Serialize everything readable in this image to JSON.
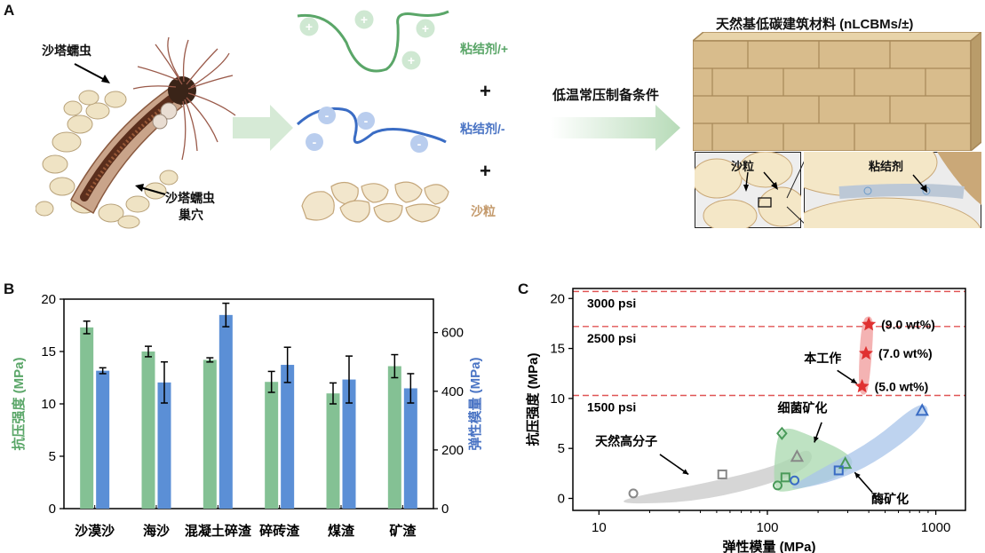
{
  "panelA": {
    "letter": "A",
    "worm_label": "沙塔蠕虫",
    "nest_label_1": "沙塔蠕虫",
    "nest_label_2": "巢穴",
    "binder_pos": "粘结剂/+",
    "binder_neg": "粘结剂/-",
    "sand": "沙粒",
    "plus1": "+",
    "plus2": "+",
    "condition": "低温常压制备条件",
    "material_title": "天然基低碳建筑材料 (nLCBMs/±)",
    "inset_sand": "沙粒",
    "inset_binder": "粘结剂",
    "colors": {
      "green": "#5aa668",
      "blue": "#4a74c4",
      "brown": "#c49a6c",
      "arrow": "#cfe6cf"
    }
  },
  "panelB": {
    "letter": "B",
    "chart_data": {
      "type": "bar",
      "categories": [
        "沙漠沙",
        "海沙",
        "混凝土碎渣",
        "碎砖渣",
        "煤渣",
        "矿渣"
      ],
      "series": [
        {
          "name": "抗压强度 (MPa)",
          "axis": "left",
          "color": "#84c194",
          "values": [
            17.3,
            15.0,
            14.2,
            12.1,
            11.0,
            13.6
          ],
          "errors": [
            0.6,
            0.5,
            0.2,
            1.0,
            1.0,
            1.1
          ]
        },
        {
          "name": "弹性模量 (MPa)",
          "axis": "right",
          "color": "#5b8fd6",
          "values": [
            470,
            430,
            660,
            490,
            440,
            410
          ],
          "errors": [
            10,
            70,
            40,
            60,
            80,
            50
          ]
        }
      ],
      "ylabel_left": "抗压强度 (MPa)",
      "ylabel_right": "弹性模量 (MPa)",
      "ylim_left": [
        0,
        20
      ],
      "ylim_right": [
        0,
        714
      ],
      "yticks_left": [
        "0",
        "5",
        "10",
        "15",
        "20"
      ],
      "yticks_right": [
        "0",
        "200",
        "400",
        "600"
      ],
      "yticks_left_vals": [
        0,
        5,
        10,
        15,
        20
      ],
      "yticks_right_vals": [
        0,
        200,
        400,
        600
      ]
    }
  },
  "panelC": {
    "letter": "C",
    "chart_data": {
      "type": "scatter",
      "x_scale": "log",
      "xlim": [
        7,
        1500
      ],
      "ylim": [
        -1.2,
        21
      ],
      "xlabel": "弹性模量 (MPa)",
      "ylabel": "抗压强度 (MPa)",
      "xticks": [
        "10",
        "100",
        "1000"
      ],
      "xticks_vals": [
        10,
        100,
        1000
      ],
      "yticks": [
        "0",
        "5",
        "10",
        "15",
        "20"
      ],
      "yticks_vals": [
        0,
        5,
        10,
        15,
        20
      ],
      "hlines": [
        {
          "y": 20.7,
          "label": "3000 psi"
        },
        {
          "y": 17.2,
          "label": "2500 psi"
        },
        {
          "y": 10.3,
          "label": "1500 psi"
        }
      ],
      "regions": [
        {
          "name": "天然高分子",
          "color": "#c8c8c8"
        },
        {
          "name": "细菌矿化",
          "color": "#a8d8ae"
        },
        {
          "name": "酶矿化",
          "color": "#a8c4ea"
        },
        {
          "name": "本工作",
          "color": "#f09a9a"
        }
      ],
      "points": [
        {
          "group": "天然高分子",
          "marker": "circle",
          "x": 16,
          "y": 0.5,
          "color": "#888888"
        },
        {
          "group": "天然高分子",
          "marker": "square",
          "x": 54,
          "y": 2.4,
          "color": "#888888"
        },
        {
          "group": "天然高分子",
          "marker": "triangle",
          "x": 150,
          "y": 4.2,
          "color": "#888888"
        },
        {
          "group": "细菌矿化",
          "marker": "diamond",
          "x": 122,
          "y": 6.5,
          "color": "#4a9a5a"
        },
        {
          "group": "细菌矿化",
          "marker": "circle",
          "x": 115,
          "y": 1.3,
          "color": "#4a9a5a"
        },
        {
          "group": "细菌矿化",
          "marker": "square",
          "x": 128,
          "y": 2.1,
          "color": "#4a9a5a"
        },
        {
          "group": "细菌矿化",
          "marker": "triangle",
          "x": 290,
          "y": 3.5,
          "color": "#4a9a5a"
        },
        {
          "group": "酶矿化",
          "marker": "circle",
          "x": 145,
          "y": 1.8,
          "color": "#3a6cc4"
        },
        {
          "group": "酶矿化",
          "marker": "square",
          "x": 265,
          "y": 2.8,
          "color": "#3a6cc4"
        },
        {
          "group": "酶矿化",
          "marker": "triangle",
          "x": 830,
          "y": 8.8,
          "color": "#3a6cc4"
        },
        {
          "group": "本工作",
          "marker": "star",
          "x": 400,
          "y": 17.4,
          "label": "(9.0 wt%)",
          "color": "#e03030"
        },
        {
          "group": "本工作",
          "marker": "star",
          "x": 385,
          "y": 14.5,
          "label": "(7.0 wt%)",
          "color": "#e03030"
        },
        {
          "group": "本工作",
          "marker": "star",
          "x": 365,
          "y": 11.2,
          "label": "(5.0 wt%)",
          "color": "#e03030"
        }
      ]
    }
  }
}
